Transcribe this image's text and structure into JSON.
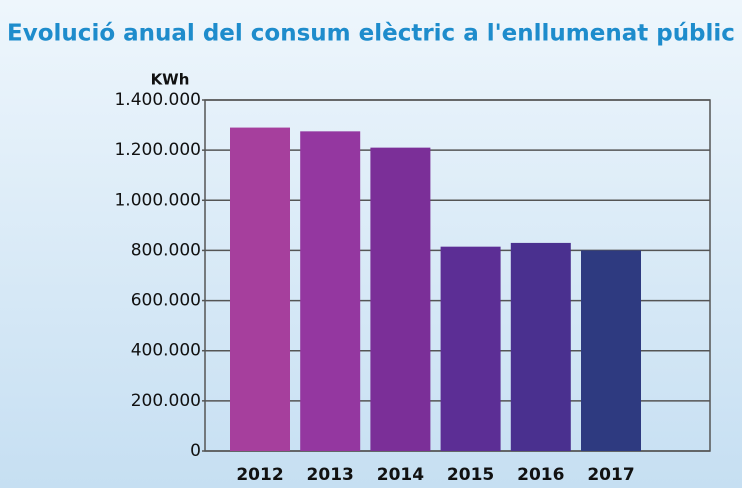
{
  "chart_data": {
    "type": "bar",
    "title": "Evolució anual del consum elèctric a l'enllumenat públic",
    "y_label": "KWh",
    "categories": [
      "2012",
      "2013",
      "2014",
      "2015",
      "2016",
      "2017"
    ],
    "values": [
      1290000,
      1275000,
      1210000,
      815000,
      830000,
      800000
    ],
    "colors": [
      "#a63f9d",
      "#9437a0",
      "#7b2f98",
      "#5c2e95",
      "#4a308f",
      "#2e3a80"
    ],
    "ylim": [
      0,
      1400000
    ],
    "yticks": [
      0,
      {
        "value": 200000,
        "label": "200.000"
      },
      {
        "value": 400000,
        "label": "400.000"
      },
      {
        "value": 600000,
        "label": "600.000"
      },
      {
        "value": 800000,
        "label": "800.000"
      },
      {
        "value": 1000000,
        "label": "1.000.000"
      },
      {
        "value": 1200000,
        "label": "1.200.000"
      },
      {
        "value": 1400000,
        "label": "1.400.000"
      }
    ],
    "grid": true
  }
}
